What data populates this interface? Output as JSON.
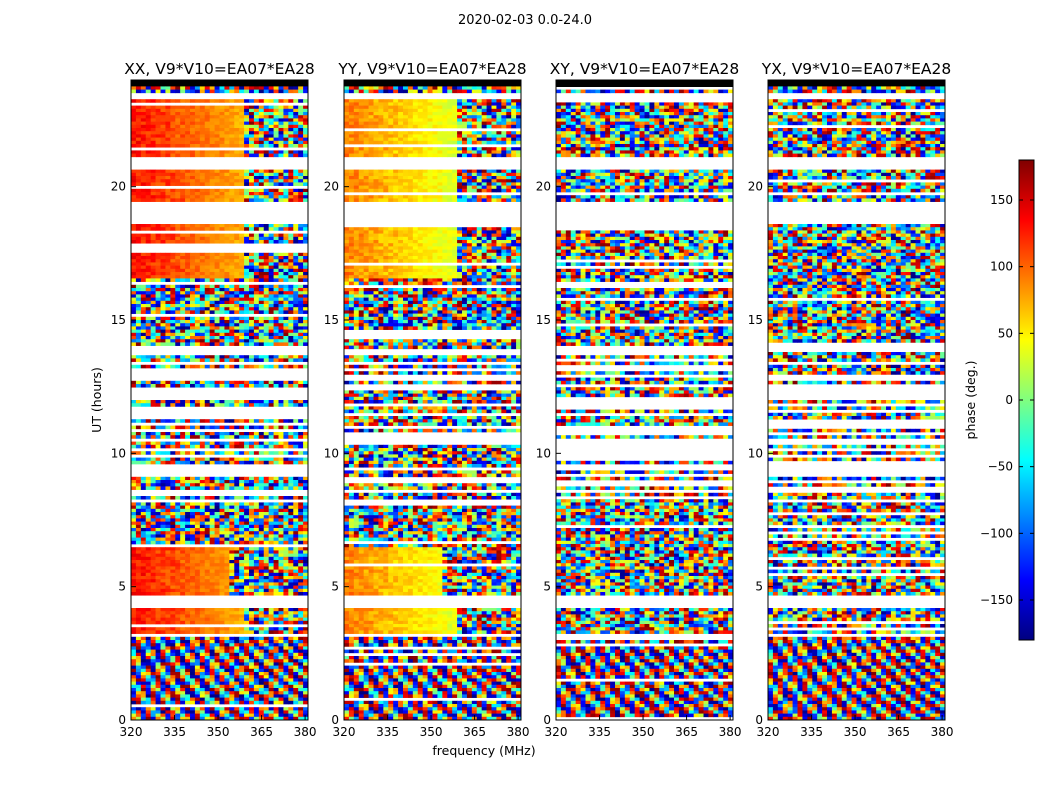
{
  "chart_data": {
    "type": "heatmap",
    "suptitle": "2020-02-03 0.0-24.0",
    "xlabel": "frequency (MHz)",
    "ylabel": "UT (hours)",
    "colorbar_label": "phase (deg.)",
    "colorbar_range": [
      -180,
      180
    ],
    "colorbar_ticks": [
      "150",
      "100",
      "50",
      "0",
      "−50",
      "−100",
      "−150"
    ],
    "colorbar_tick_values": [
      150,
      100,
      50,
      0,
      -50,
      -100,
      -150
    ],
    "colormap": "jet",
    "xlim": [
      320,
      381
    ],
    "ylim": [
      0,
      24
    ],
    "x_ticks": [
      "320",
      "335",
      "350",
      "365",
      "380"
    ],
    "x_tick_values": [
      320,
      335,
      350,
      365,
      380
    ],
    "y_ticks": [
      "0",
      "5",
      "10",
      "15",
      "20"
    ],
    "y_tick_values": [
      0,
      5,
      10,
      15,
      20
    ],
    "panels": [
      {
        "title": "XX, V9*V10=EA07*EA28",
        "pol": "XX",
        "coherent_phase_deg": 130
      },
      {
        "title": "YY, V9*V10=EA07*EA28",
        "pol": "YY",
        "coherent_phase_deg": 90
      },
      {
        "title": "XY, V9*V10=EA07*EA28",
        "pol": "XY",
        "coherent_phase_deg": null
      },
      {
        "title": "YX, V9*V10=EA07*EA28",
        "pol": "YX",
        "coherent_phase_deg": null
      }
    ],
    "flagged_ut_intervals": [
      [
        3.1,
        3.25
      ],
      [
        4.2,
        4.65
      ],
      [
        18.6,
        19.4
      ],
      [
        20.6,
        21.1
      ],
      [
        23.3,
        23.5
      ]
    ],
    "blank_ut_intervals": [
      [
        23.75,
        24.0
      ]
    ],
    "dense_flag_ut_range": [
      8.5,
      14.0
    ]
  },
  "colors": {
    "axis": "#000000",
    "background": "#ffffff",
    "flagged": "#ffffff",
    "blank": "#000000"
  }
}
